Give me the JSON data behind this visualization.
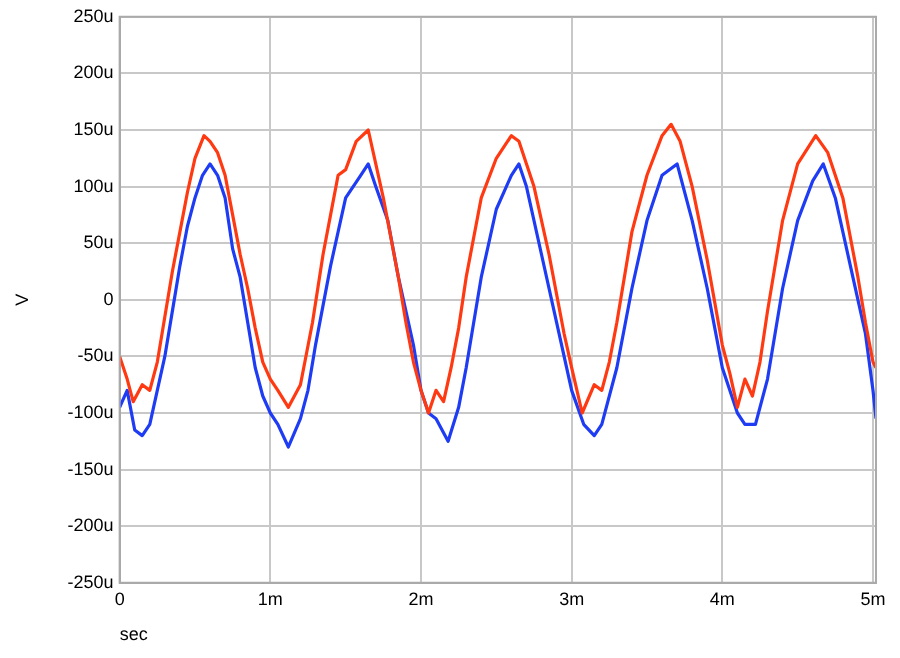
{
  "chart_data": {
    "type": "line",
    "xlabel": "sec",
    "ylabel": "V",
    "xlim": [
      0,
      5.02
    ],
    "ylim": [
      -250,
      250
    ],
    "xticks": [
      0,
      {
        "value": 1,
        "label": "1m"
      },
      {
        "value": 2,
        "label": "2m"
      },
      {
        "value": 3,
        "label": "3m"
      },
      {
        "value": 4,
        "label": "4m"
      },
      {
        "value": 5,
        "label": "5m"
      }
    ],
    "yticks": [
      {
        "value": -250,
        "label": "-250u"
      },
      {
        "value": -200,
        "label": "-200u"
      },
      {
        "value": -150,
        "label": "-150u"
      },
      {
        "value": -100,
        "label": "-100u"
      },
      {
        "value": -50,
        "label": "-50u"
      },
      0,
      {
        "value": 50,
        "label": "50u"
      },
      {
        "value": 100,
        "label": "100u"
      },
      {
        "value": 150,
        "label": "150u"
      },
      {
        "value": 200,
        "label": "200u"
      },
      {
        "value": 250,
        "label": "250u"
      }
    ],
    "grid": true,
    "legend": false,
    "marker": "none",
    "line_style": "solid",
    "series": [
      {
        "color": "#ff3a12",
        "x": [
          0,
          0.05,
          0.09,
          0.15,
          0.2,
          0.25,
          0.3,
          0.35,
          0.4,
          0.45,
          0.5,
          0.56,
          0.6,
          0.65,
          0.7,
          0.75,
          0.8,
          0.85,
          0.9,
          0.95,
          1,
          1.05,
          1.12,
          1.2,
          1.28,
          1.35,
          1.4,
          1.45,
          1.5,
          1.57,
          1.65,
          1.7,
          1.75,
          1.8,
          1.85,
          1.9,
          1.95,
          2,
          2.05,
          2.1,
          2.15,
          2.2,
          2.25,
          2.3,
          2.4,
          2.5,
          2.6,
          2.65,
          2.75,
          2.85,
          2.95,
          3,
          3.07,
          3.15,
          3.2,
          3.25,
          3.3,
          3.4,
          3.5,
          3.6,
          3.66,
          3.72,
          3.8,
          3.9,
          4,
          4.05,
          4.1,
          4.15,
          4.2,
          4.25,
          4.3,
          4.4,
          4.5,
          4.62,
          4.7,
          4.8,
          4.9,
          4.95,
          5,
          5.02
        ],
        "values": [
          -50,
          -70,
          -90,
          -75,
          -80,
          -55,
          -15,
          25,
          60,
          95,
          125,
          145,
          140,
          130,
          110,
          75,
          40,
          10,
          -25,
          -55,
          -70,
          -80,
          -95,
          -75,
          -20,
          40,
          75,
          110,
          115,
          140,
          150,
          120,
          90,
          55,
          20,
          -20,
          -55,
          -80,
          -100,
          -80,
          -90,
          -60,
          -25,
          20,
          90,
          125,
          145,
          140,
          100,
          40,
          -30,
          -60,
          -100,
          -75,
          -80,
          -55,
          -20,
          60,
          110,
          145,
          155,
          140,
          100,
          35,
          -40,
          -65,
          -95,
          -70,
          -85,
          -55,
          -10,
          70,
          120,
          145,
          130,
          90,
          20,
          -20,
          -55,
          -60
        ]
      },
      {
        "color": "#1f3cf5",
        "x": [
          0,
          0.05,
          0.1,
          0.15,
          0.2,
          0.25,
          0.3,
          0.35,
          0.4,
          0.45,
          0.5,
          0.55,
          0.6,
          0.65,
          0.7,
          0.75,
          0.8,
          0.85,
          0.9,
          0.95,
          1,
          1.05,
          1.12,
          1.2,
          1.25,
          1.3,
          1.4,
          1.5,
          1.6,
          1.65,
          1.7,
          1.78,
          1.85,
          1.95,
          2,
          2.05,
          2.1,
          2.18,
          2.25,
          2.3,
          2.4,
          2.5,
          2.6,
          2.65,
          2.7,
          2.8,
          2.9,
          3,
          3.08,
          3.15,
          3.2,
          3.3,
          3.4,
          3.5,
          3.6,
          3.7,
          3.8,
          3.9,
          4,
          4.1,
          4.15,
          4.22,
          4.3,
          4.4,
          4.5,
          4.6,
          4.67,
          4.75,
          4.85,
          4.95,
          5,
          5.02
        ],
        "values": [
          -95,
          -80,
          -115,
          -120,
          -110,
          -80,
          -50,
          -10,
          30,
          65,
          90,
          110,
          120,
          110,
          90,
          45,
          20,
          -20,
          -60,
          -85,
          -100,
          -110,
          -130,
          -105,
          -80,
          -40,
          30,
          90,
          110,
          120,
          100,
          70,
          20,
          -40,
          -80,
          -100,
          -105,
          -125,
          -95,
          -60,
          20,
          80,
          110,
          120,
          100,
          40,
          -20,
          -80,
          -110,
          -120,
          -110,
          -60,
          10,
          70,
          110,
          120,
          70,
          10,
          -60,
          -100,
          -110,
          -110,
          -70,
          10,
          70,
          105,
          120,
          90,
          30,
          -30,
          -80,
          -105
        ]
      }
    ]
  }
}
